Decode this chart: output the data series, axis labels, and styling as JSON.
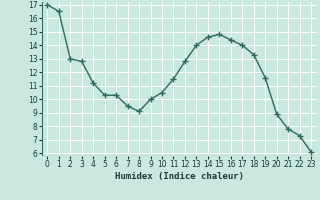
{
  "x": [
    0,
    1,
    2,
    3,
    4,
    5,
    6,
    7,
    8,
    9,
    10,
    11,
    12,
    13,
    14,
    15,
    16,
    17,
    18,
    19,
    20,
    21,
    22,
    23
  ],
  "y": [
    17.0,
    16.5,
    13.0,
    12.8,
    11.2,
    10.3,
    10.3,
    9.5,
    9.1,
    10.0,
    10.5,
    11.5,
    12.8,
    14.0,
    14.6,
    14.8,
    14.4,
    14.0,
    13.3,
    11.6,
    8.9,
    7.8,
    7.3,
    6.1
  ],
  "xlabel": "Humidex (Indice chaleur)",
  "ylim": [
    6,
    17
  ],
  "xlim": [
    -0.5,
    23.5
  ],
  "yticks": [
    6,
    7,
    8,
    9,
    10,
    11,
    12,
    13,
    14,
    15,
    16,
    17
  ],
  "xticks": [
    0,
    1,
    2,
    3,
    4,
    5,
    6,
    7,
    8,
    9,
    10,
    11,
    12,
    13,
    14,
    15,
    16,
    17,
    18,
    19,
    20,
    21,
    22,
    23
  ],
  "line_color": "#2e6b5e",
  "marker_color": "#2e6b5e",
  "bg_color": "#c8e8e0",
  "grid_color": "#ffffff",
  "label_color": "#1a3a3a",
  "xlabel_fontsize": 6.5,
  "tick_fontsize": 5.5
}
